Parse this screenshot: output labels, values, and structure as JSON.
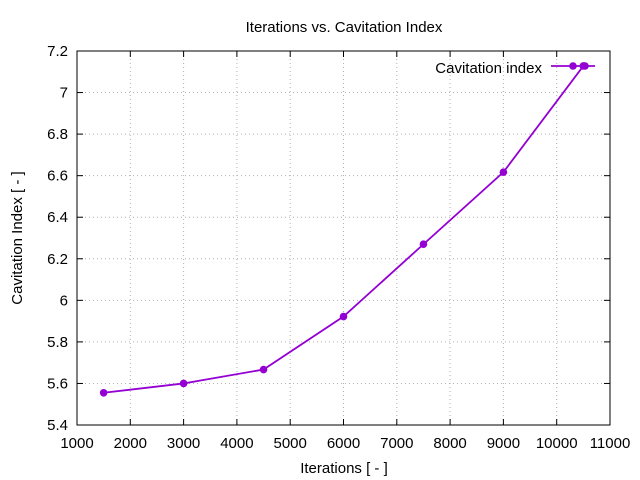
{
  "chart_data": {
    "type": "line",
    "title": "Iterations  vs. Cavitation Index",
    "xlabel": "Iterations [ - ]",
    "ylabel": "Cavitation Index [ - ]",
    "xlim": [
      1000,
      11000
    ],
    "ylim": [
      5.4,
      7.2
    ],
    "xticks": [
      1000,
      2000,
      3000,
      4000,
      5000,
      6000,
      7000,
      8000,
      9000,
      10000,
      11000
    ],
    "xtick_labels": [
      "1000",
      "2000",
      "3000",
      "4000",
      "5000",
      "6000",
      "7000",
      "8000",
      "9000",
      "10000",
      "11000"
    ],
    "yticks": [
      5.4,
      5.6,
      5.8,
      6.0,
      6.2,
      6.4,
      6.6,
      6.8,
      7.0,
      7.2
    ],
    "ytick_labels": [
      "5.4",
      "5.6",
      "5.8",
      "6",
      "6.2",
      "6.4",
      "6.6",
      "6.8",
      "7",
      "7.2"
    ],
    "grid": true,
    "legend": "top-right",
    "series": [
      {
        "name": "Cavitation index",
        "color": "#9400d3",
        "x": [
          1500,
          3000,
          4500,
          6000,
          7500,
          9000,
          10500
        ],
        "y": [
          5.555,
          5.6,
          5.667,
          5.922,
          6.27,
          6.617,
          7.128
        ]
      }
    ]
  }
}
